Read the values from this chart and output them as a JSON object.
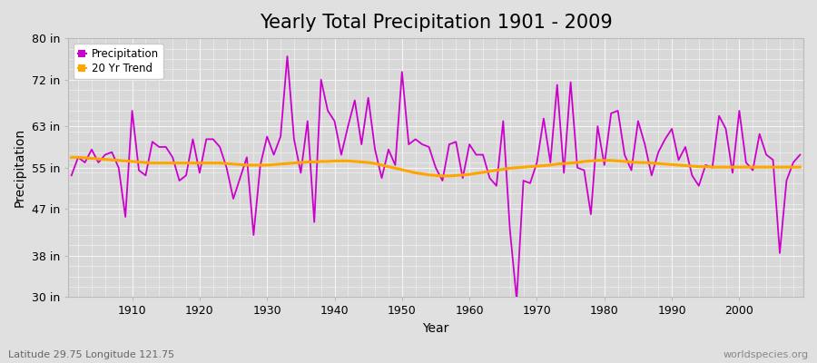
{
  "title": "Yearly Total Precipitation 1901 - 2009",
  "xlabel": "Year",
  "ylabel": "Precipitation",
  "subtitle_lat": "Latitude 29.75 Longitude 121.75",
  "watermark": "worldspecies.org",
  "years": [
    1901,
    1902,
    1903,
    1904,
    1905,
    1906,
    1907,
    1908,
    1909,
    1910,
    1911,
    1912,
    1913,
    1914,
    1915,
    1916,
    1917,
    1918,
    1919,
    1920,
    1921,
    1922,
    1923,
    1924,
    1925,
    1926,
    1927,
    1928,
    1929,
    1930,
    1931,
    1932,
    1933,
    1934,
    1935,
    1936,
    1937,
    1938,
    1939,
    1940,
    1941,
    1942,
    1943,
    1944,
    1945,
    1946,
    1947,
    1948,
    1949,
    1950,
    1951,
    1952,
    1953,
    1954,
    1955,
    1956,
    1957,
    1958,
    1959,
    1960,
    1961,
    1962,
    1963,
    1964,
    1965,
    1966,
    1967,
    1968,
    1969,
    1970,
    1971,
    1972,
    1973,
    1974,
    1975,
    1976,
    1977,
    1978,
    1979,
    1980,
    1981,
    1982,
    1983,
    1984,
    1985,
    1986,
    1987,
    1988,
    1989,
    1990,
    1991,
    1992,
    1993,
    1994,
    1995,
    1996,
    1997,
    1998,
    1999,
    2000,
    2001,
    2002,
    2003,
    2004,
    2005,
    2006,
    2007,
    2008,
    2009
  ],
  "precipitation": [
    53.5,
    57.0,
    56.0,
    58.5,
    56.0,
    57.5,
    58.0,
    55.0,
    45.5,
    66.0,
    54.5,
    53.5,
    60.0,
    59.0,
    59.0,
    57.0,
    52.5,
    53.5,
    60.5,
    54.0,
    60.5,
    60.5,
    59.0,
    55.0,
    49.0,
    53.0,
    57.0,
    42.0,
    55.5,
    61.0,
    57.5,
    61.0,
    76.5,
    60.5,
    54.0,
    64.0,
    44.5,
    72.0,
    66.0,
    64.0,
    57.5,
    63.0,
    68.0,
    59.5,
    68.5,
    58.5,
    53.0,
    58.5,
    55.5,
    73.5,
    59.5,
    60.5,
    59.5,
    59.0,
    55.0,
    52.5,
    59.5,
    60.0,
    53.0,
    59.5,
    57.5,
    57.5,
    53.0,
    51.5,
    64.0,
    43.0,
    29.5,
    52.5,
    52.0,
    56.0,
    64.5,
    56.0,
    71.0,
    54.0,
    71.5,
    55.0,
    54.5,
    46.0,
    63.0,
    55.5,
    65.5,
    66.0,
    57.5,
    54.5,
    64.0,
    59.5,
    53.5,
    58.0,
    60.5,
    62.5,
    56.5,
    59.0,
    53.5,
    51.5,
    55.5,
    55.0,
    65.0,
    62.5,
    54.0,
    66.0,
    56.0,
    54.5,
    61.5,
    57.5,
    56.5,
    38.5,
    52.5,
    56.0,
    57.5
  ],
  "trend": [
    57.0,
    57.0,
    56.9,
    56.8,
    56.7,
    56.6,
    56.5,
    56.4,
    56.3,
    56.2,
    56.1,
    56.0,
    55.9,
    55.9,
    55.9,
    55.9,
    55.9,
    55.9,
    55.9,
    55.9,
    55.9,
    55.9,
    55.9,
    55.8,
    55.7,
    55.6,
    55.5,
    55.5,
    55.5,
    55.5,
    55.6,
    55.7,
    55.8,
    55.9,
    56.0,
    56.1,
    56.1,
    56.2,
    56.2,
    56.3,
    56.3,
    56.3,
    56.2,
    56.1,
    56.0,
    55.8,
    55.5,
    55.2,
    54.9,
    54.6,
    54.3,
    54.0,
    53.8,
    53.6,
    53.5,
    53.4,
    53.4,
    53.5,
    53.6,
    53.7,
    53.9,
    54.1,
    54.3,
    54.5,
    54.7,
    54.9,
    55.0,
    55.1,
    55.2,
    55.3,
    55.4,
    55.5,
    55.7,
    55.8,
    55.9,
    56.0,
    56.2,
    56.3,
    56.4,
    56.4,
    56.4,
    56.3,
    56.2,
    56.1,
    56.0,
    56.0,
    55.9,
    55.8,
    55.7,
    55.6,
    55.5,
    55.4,
    55.3,
    55.2,
    55.2,
    55.1,
    55.1,
    55.1,
    55.1,
    55.1,
    55.1,
    55.1,
    55.1,
    55.1,
    55.1,
    55.1,
    55.1,
    55.1,
    55.1
  ],
  "precip_color": "#CC00CC",
  "trend_color": "#FFA500",
  "bg_color": "#E0E0E0",
  "plot_bg_color": "#D8D8D8",
  "grid_color": "#F5F5F5",
  "ylim": [
    30,
    80
  ],
  "yticks": [
    30,
    38,
    47,
    55,
    63,
    72,
    80
  ],
  "ytick_labels": [
    "30 in",
    "38 in",
    "47 in",
    "55 in",
    "63 in",
    "72 in",
    "80 in"
  ],
  "xticks": [
    1910,
    1920,
    1930,
    1940,
    1950,
    1960,
    1970,
    1980,
    1990,
    2000
  ],
  "title_fontsize": 15,
  "axis_fontsize": 10,
  "tick_fontsize": 9
}
